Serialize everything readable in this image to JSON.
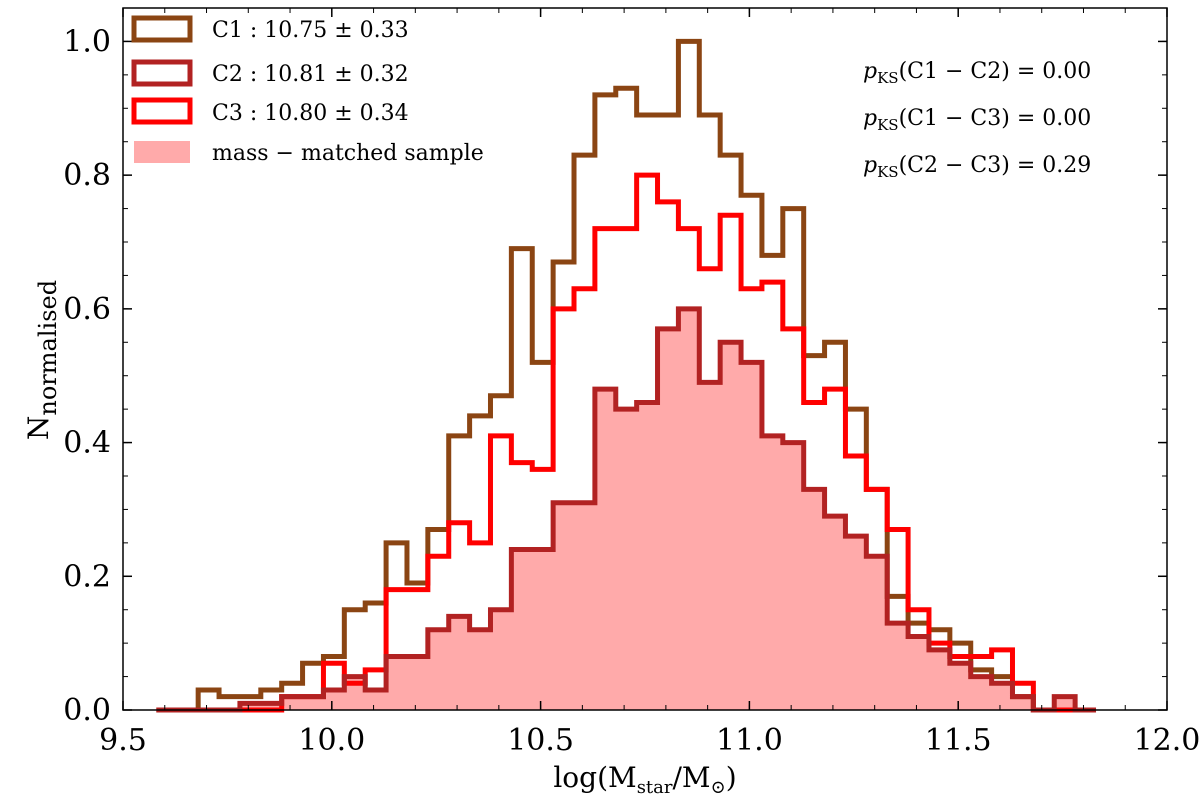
{
  "chart_data": {
    "type": "histogram",
    "xlabel": "log(M_star/M_⊙)",
    "xlabel_parts": {
      "main": "log(M",
      "sub1": "star",
      "mid": "/M",
      "sub2": "⊙",
      "end": ")"
    },
    "ylabel_parts": {
      "main": "N",
      "sub": "normalised"
    },
    "xlim": [
      9.5,
      12.0
    ],
    "ylim": [
      0.0,
      1.05
    ],
    "xticks": [
      "9.5",
      "10.0",
      "10.5",
      "11.0",
      "11.5",
      "12.0"
    ],
    "yticks": [
      "0.0",
      "0.2",
      "0.4",
      "0.6",
      "0.8",
      "1.0"
    ],
    "bin_edges": [
      9.58,
      9.63,
      9.68,
      9.73,
      9.78,
      9.83,
      9.88,
      9.93,
      9.98,
      10.03,
      10.08,
      10.13,
      10.18,
      10.23,
      10.28,
      10.33,
      10.38,
      10.43,
      10.48,
      10.53,
      10.58,
      10.63,
      10.68,
      10.73,
      10.78,
      10.83,
      10.88,
      10.93,
      10.98,
      11.03,
      11.08,
      11.13,
      11.18,
      11.23,
      11.28,
      11.33,
      11.38,
      11.43,
      11.48,
      11.53,
      11.58,
      11.63,
      11.68,
      11.73,
      11.78,
      11.83
    ],
    "series": [
      {
        "name": "C1 : 10.75 ± 0.33",
        "style": "step",
        "color": "#8b4513",
        "values": [
          0.0,
          0.0,
          0.03,
          0.02,
          0.02,
          0.03,
          0.04,
          0.07,
          0.08,
          0.15,
          0.16,
          0.25,
          0.19,
          0.27,
          0.41,
          0.44,
          0.47,
          0.69,
          0.52,
          0.67,
          0.83,
          0.92,
          0.93,
          0.89,
          0.89,
          1.0,
          0.89,
          0.83,
          0.77,
          0.68,
          0.75,
          0.53,
          0.55,
          0.45,
          0.33,
          0.17,
          0.13,
          0.12,
          0.1,
          0.06,
          0.05,
          0.02,
          0.0,
          0.0,
          0.0
        ]
      },
      {
        "name": "C2 : 10.81 ± 0.32",
        "style": "step",
        "color": "#b22222",
        "values": [
          0.0,
          0.0,
          0.0,
          0.0,
          0.01,
          0.01,
          0.02,
          0.02,
          0.03,
          0.05,
          0.03,
          0.08,
          0.08,
          0.12,
          0.14,
          0.12,
          0.15,
          0.24,
          0.24,
          0.31,
          0.31,
          0.48,
          0.45,
          0.46,
          0.57,
          0.6,
          0.49,
          0.55,
          0.52,
          0.41,
          0.4,
          0.33,
          0.29,
          0.26,
          0.23,
          0.13,
          0.11,
          0.09,
          0.07,
          0.05,
          0.04,
          0.02,
          0.0,
          0.02,
          0.0
        ]
      },
      {
        "name": "C3 : 10.80 ± 0.34",
        "style": "step",
        "color": "#ff0000",
        "values": [
          0.0,
          0.0,
          0.0,
          0.0,
          0.0,
          0.0,
          0.02,
          0.02,
          0.07,
          0.04,
          0.06,
          0.18,
          0.18,
          0.23,
          0.28,
          0.25,
          0.41,
          0.37,
          0.36,
          0.6,
          0.63,
          0.72,
          0.72,
          0.8,
          0.76,
          0.72,
          0.66,
          0.74,
          0.63,
          0.64,
          0.57,
          0.46,
          0.48,
          0.38,
          0.33,
          0.27,
          0.15,
          0.1,
          0.08,
          0.08,
          0.09,
          0.04,
          0.0,
          0.0,
          0.0
        ]
      },
      {
        "name": "mass − matched sample",
        "style": "filled",
        "color": "#ffaaaa",
        "values": [
          0.0,
          0.0,
          0.0,
          0.0,
          0.01,
          0.01,
          0.02,
          0.02,
          0.03,
          0.05,
          0.03,
          0.08,
          0.08,
          0.12,
          0.14,
          0.12,
          0.15,
          0.24,
          0.24,
          0.31,
          0.31,
          0.48,
          0.45,
          0.46,
          0.57,
          0.6,
          0.49,
          0.55,
          0.52,
          0.41,
          0.4,
          0.33,
          0.29,
          0.26,
          0.23,
          0.13,
          0.11,
          0.09,
          0.07,
          0.05,
          0.04,
          0.02,
          0.0,
          0.02,
          0.0
        ]
      }
    ],
    "legend": {
      "placement": "top-left",
      "entries": [
        {
          "label": "C1 : 10.75 ± 0.33",
          "color": "#8b4513",
          "kind": "outline"
        },
        {
          "label": "C2 : 10.81 ± 0.32",
          "color": "#b22222",
          "kind": "outline"
        },
        {
          "label": "C3 : 10.80 ± 0.34",
          "color": "#ff0000",
          "kind": "outline"
        },
        {
          "label": "mass − matched sample",
          "color": "#ffaaaa",
          "kind": "filled"
        }
      ]
    },
    "annotations": {
      "placement": "top-right",
      "items": [
        {
          "prefix": "p",
          "sub": "KS",
          "text": "(C1 − C2) = 0.00"
        },
        {
          "prefix": "p",
          "sub": "KS",
          "text": "(C1 − C3) = 0.00"
        },
        {
          "prefix": "p",
          "sub": "KS",
          "text": "(C2 − C3) = 0.29"
        }
      ]
    }
  }
}
